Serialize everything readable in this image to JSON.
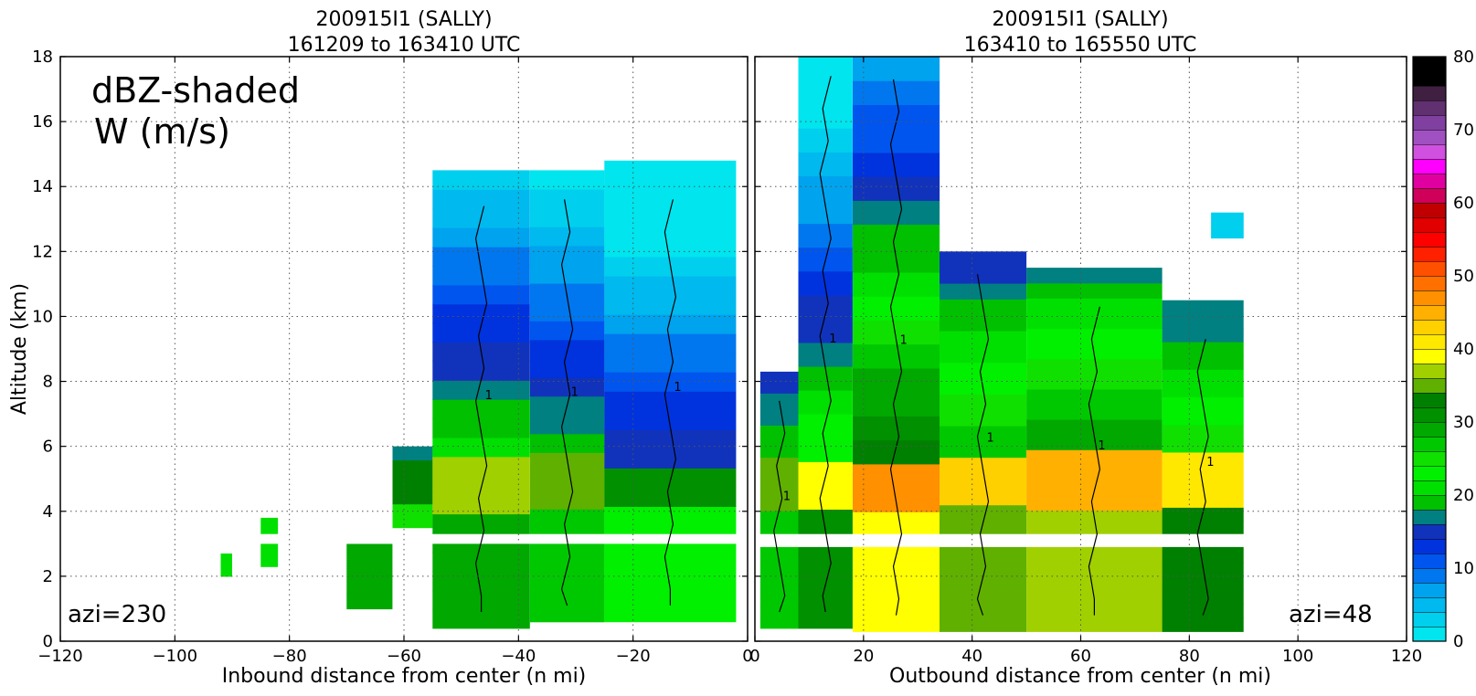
{
  "chart_data": [
    {
      "type": "heatmap",
      "panel": "left",
      "title": "200915I1 (SALLY)",
      "subtitle": "161209 to 163410 UTC",
      "xlabel": "Inbound distance from center (n mi)",
      "ylabel": "Altitude (km)",
      "xlim": [
        -120,
        0
      ],
      "ylim": [
        0,
        18
      ],
      "xticks": [
        -120,
        -100,
        -80,
        -60,
        -40,
        -20,
        0
      ],
      "yticks": [
        0,
        2,
        4,
        6,
        8,
        10,
        12,
        14,
        16,
        18
      ],
      "grid": true,
      "annotations": [
        "dBZ-shaded",
        "W (m/s)",
        "azi=230"
      ],
      "contour_label": "1",
      "echo_columns": [
        {
          "x": [
            -92,
            -90
          ],
          "base": 2.0,
          "top": 2.7,
          "dbz": 15
        },
        {
          "x": [
            -85,
            -82
          ],
          "base": 2.3,
          "top": 3.8,
          "dbz": 15
        },
        {
          "x": [
            -70,
            -62
          ],
          "base": 1.0,
          "top": 3.0,
          "dbz": 22
        },
        {
          "x": [
            -62,
            -55
          ],
          "base": 3.5,
          "top": 6.0,
          "dbz": 18
        },
        {
          "x": [
            -55,
            -38
          ],
          "base": 0.4,
          "top": 14.5,
          "dbz": 22
        },
        {
          "x": [
            -38,
            -25
          ],
          "base": 0.6,
          "top": 14.5,
          "dbz": 20
        },
        {
          "x": [
            -25,
            -2
          ],
          "base": 0.6,
          "top": 14.8,
          "dbz": 16
        }
      ],
      "echo_gap_km": [
        3.0,
        3.3
      ],
      "bright_band_km": [
        4.2,
        5.6
      ]
    },
    {
      "type": "heatmap",
      "panel": "right",
      "title": "200915I1 (SALLY)",
      "subtitle": "163410 to 165550 UTC",
      "xlabel": "Outbound distance from center (n mi)",
      "xlim": [
        0,
        120
      ],
      "ylim": [
        0,
        18
      ],
      "xticks": [
        0,
        20,
        40,
        60,
        80,
        100,
        120
      ],
      "yticks": [
        0,
        2,
        4,
        6,
        8,
        10,
        12,
        14,
        16,
        18
      ],
      "grid": true,
      "annotations": [
        "azi=48"
      ],
      "contour_label": "1",
      "echo_columns": [
        {
          "x": [
            1,
            8
          ],
          "base": 0.4,
          "top": 8.3,
          "dbz": 20
        },
        {
          "x": [
            8,
            18
          ],
          "base": 0.4,
          "top": 18.0,
          "dbz": 24
        },
        {
          "x": [
            18,
            34
          ],
          "base": 0.3,
          "top": 18.0,
          "dbz": 33
        },
        {
          "x": [
            34,
            50
          ],
          "base": 0.3,
          "top": 12.0,
          "dbz": 28
        },
        {
          "x": [
            50,
            75
          ],
          "base": 0.3,
          "top": 11.5,
          "dbz": 30
        },
        {
          "x": [
            75,
            90
          ],
          "base": 0.3,
          "top": 10.5,
          "dbz": 26
        }
      ],
      "echo_gap_km": [
        2.9,
        3.3
      ],
      "bright_band_km": [
        4.0,
        5.8
      ],
      "anvil_patch": {
        "x": [
          84,
          90
        ],
        "y": [
          12.4,
          13.2
        ],
        "dbz": 2
      }
    }
  ],
  "colorbar": {
    "min": 0,
    "max": 80,
    "ticks": [
      0,
      10,
      20,
      30,
      40,
      50,
      60,
      70,
      80
    ],
    "levels": [
      0,
      2,
      4,
      6,
      8,
      10,
      12,
      14,
      16,
      18,
      20,
      22,
      24,
      26,
      28,
      30,
      32,
      34,
      36,
      38,
      40,
      42,
      44,
      46,
      48,
      50,
      52,
      54,
      56,
      58,
      60,
      62,
      64,
      66,
      68,
      70,
      72,
      74,
      76,
      78,
      80
    ],
    "colors": [
      "#00e5ee",
      "#00cfee",
      "#00b9ee",
      "#00a3ee",
      "#0077ee",
      "#0055ee",
      "#0033dd",
      "#1133bb",
      "#008080",
      "#00c000",
      "#00e000",
      "#00f000",
      "#10e000",
      "#00c800",
      "#00a800",
      "#009000",
      "#008000",
      "#60b000",
      "#a0d000",
      "#ffff00",
      "#ffe800",
      "#ffd000",
      "#ffb000",
      "#ff9000",
      "#ff7000",
      "#ff5000",
      "#ff2000",
      "#ff0000",
      "#e00000",
      "#c00000",
      "#d0005a",
      "#e000a0",
      "#ff00ff",
      "#d050e0",
      "#a050c0",
      "#8040a0",
      "#603070",
      "#402040",
      "#000000",
      "#000000"
    ]
  }
}
